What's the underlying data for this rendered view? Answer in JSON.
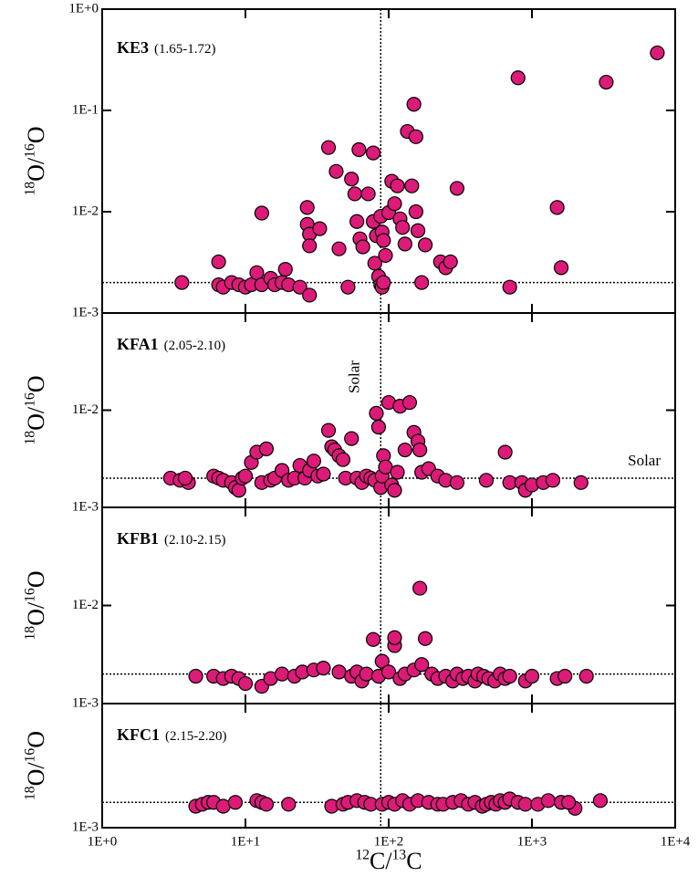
{
  "chart_data": [
    {
      "type": "scatter",
      "panel_name": "KE3",
      "panel_range": "(1.65-1.72)",
      "y_label": [
        "18",
        "O/",
        "16",
        "O"
      ],
      "color": "#dc1a78",
      "log_x": true,
      "log_y": true,
      "xlim": [
        1,
        10000
      ],
      "ylim": [
        0.001,
        1
      ],
      "solar_x": 88,
      "solar_y": 0.002,
      "yticks": [
        {
          "value": 1,
          "label": "1E+0"
        },
        {
          "value": 0.1,
          "label": "1E-1"
        },
        {
          "value": 0.01,
          "label": "1E-2"
        },
        {
          "value": 0.001,
          "label": "1E-3"
        }
      ],
      "x": [
        3.6,
        6.5,
        6.5,
        7,
        8,
        9,
        10,
        11,
        12,
        13,
        13,
        15,
        16,
        18,
        19,
        20,
        24,
        28,
        27,
        27,
        28,
        28,
        33,
        38,
        43,
        45,
        52,
        55,
        58,
        62,
        60,
        63,
        66,
        72,
        78,
        78,
        80,
        82,
        85,
        88,
        90,
        92,
        88,
        90,
        92,
        95,
        100,
        105,
        110,
        115,
        120,
        125,
        130,
        135,
        150,
        155,
        145,
        155,
        160,
        170,
        180,
        230,
        250,
        270,
        300,
        700,
        800,
        1500,
        1600,
        3300,
        7500
      ],
      "values": [
        0.002,
        0.0032,
        0.0019,
        0.0018,
        0.002,
        0.0019,
        0.0018,
        0.0019,
        0.0025,
        0.0097,
        0.0019,
        0.0022,
        0.0019,
        0.002,
        0.0027,
        0.0019,
        0.0018,
        0.0015,
        0.011,
        0.0075,
        0.006,
        0.0046,
        0.0068,
        0.043,
        0.025,
        0.0043,
        0.0018,
        0.021,
        0.015,
        0.041,
        0.008,
        0.0054,
        0.0045,
        0.015,
        0.038,
        0.008,
        0.0031,
        0.0058,
        0.0023,
        0.0019,
        0.0018,
        0.002,
        0.009,
        0.0063,
        0.0052,
        0.0037,
        0.0098,
        0.02,
        0.012,
        0.018,
        0.0085,
        0.007,
        0.0048,
        0.062,
        0.115,
        0.055,
        0.018,
        0.01,
        0.0065,
        0.002,
        0.0047,
        0.0032,
        0.0028,
        0.0032,
        0.017,
        0.0018,
        0.21,
        0.011,
        0.0028,
        0.19,
        0.37
      ]
    },
    {
      "type": "scatter",
      "panel_name": "KFA1",
      "panel_range": "(2.05-2.10)",
      "y_label": [
        "18",
        "O/",
        "16",
        "O"
      ],
      "color": "#dc1a78",
      "log_x": true,
      "log_y": true,
      "xlim": [
        1,
        10000
      ],
      "ylim": [
        0.001,
        0.1
      ],
      "solar_x": 88,
      "solar_y": 0.002,
      "annotations": [
        "Solar",
        "Solar"
      ],
      "yticks": [
        {
          "value": 0.01,
          "label": "1E-2"
        },
        {
          "value": 0.001,
          "label": "1E-3"
        }
      ],
      "x": [
        3,
        3.5,
        4,
        3.8,
        6,
        6.5,
        7,
        8,
        8.5,
        9,
        9.5,
        10,
        11,
        12,
        13,
        14,
        15,
        16,
        18,
        20,
        22,
        24,
        26,
        28,
        30,
        32,
        35,
        38,
        40,
        42,
        45,
        48,
        50,
        55,
        60,
        65,
        70,
        75,
        80,
        82,
        85,
        88,
        90,
        92,
        95,
        100,
        105,
        110,
        115,
        120,
        130,
        140,
        150,
        160,
        165,
        170,
        190,
        220,
        250,
        300,
        480,
        650,
        700,
        850,
        900,
        1000,
        1200,
        1400,
        2200
      ],
      "values": [
        0.002,
        0.0019,
        0.0018,
        0.002,
        0.0021,
        0.002,
        0.0019,
        0.0018,
        0.0016,
        0.0015,
        0.002,
        0.0021,
        0.0029,
        0.0037,
        0.0018,
        0.004,
        0.0019,
        0.002,
        0.0024,
        0.0019,
        0.002,
        0.0027,
        0.002,
        0.0024,
        0.003,
        0.0021,
        0.0022,
        0.0062,
        0.0042,
        0.0039,
        0.0034,
        0.0031,
        0.002,
        0.0051,
        0.002,
        0.0018,
        0.0021,
        0.002,
        0.0019,
        0.0093,
        0.0067,
        0.0016,
        0.0021,
        0.0034,
        0.0026,
        0.012,
        0.0017,
        0.0015,
        0.0023,
        0.011,
        0.0039,
        0.012,
        0.0059,
        0.0048,
        0.0039,
        0.0023,
        0.0025,
        0.0021,
        0.0019,
        0.0018,
        0.0019,
        0.0037,
        0.0018,
        0.0018,
        0.0015,
        0.0017,
        0.0018,
        0.0019,
        0.0018
      ]
    },
    {
      "type": "scatter",
      "panel_name": "KFB1",
      "panel_range": "(2.10-2.15)",
      "y_label": [
        "18",
        "O/",
        "16",
        "O"
      ],
      "color": "#dc1a78",
      "log_x": true,
      "log_y": true,
      "xlim": [
        1,
        10000
      ],
      "ylim": [
        0.001,
        0.1
      ],
      "solar_x": 88,
      "solar_y": 0.002,
      "yticks": [
        {
          "value": 0.01,
          "label": "1E-2"
        },
        {
          "value": 0.001,
          "label": "1E-3"
        }
      ],
      "x": [
        4.5,
        6,
        7,
        8,
        9,
        10,
        13,
        15,
        18,
        22,
        25,
        30,
        35,
        45,
        55,
        60,
        65,
        70,
        78,
        85,
        90,
        100,
        110,
        110,
        120,
        130,
        150,
        165,
        170,
        180,
        200,
        220,
        250,
        280,
        300,
        330,
        360,
        400,
        420,
        460,
        500,
        550,
        600,
        650,
        700,
        900,
        1000,
        1500,
        1700,
        2400
      ],
      "values": [
        0.0019,
        0.0019,
        0.0018,
        0.0019,
        0.0018,
        0.0016,
        0.0015,
        0.0018,
        0.002,
        0.0019,
        0.0021,
        0.0022,
        0.0023,
        0.0021,
        0.0019,
        0.0021,
        0.0017,
        0.002,
        0.0045,
        0.0019,
        0.0027,
        0.0021,
        0.0039,
        0.0047,
        0.0018,
        0.002,
        0.0022,
        0.015,
        0.0025,
        0.0046,
        0.002,
        0.0018,
        0.0019,
        0.0017,
        0.002,
        0.0018,
        0.0019,
        0.0017,
        0.002,
        0.0019,
        0.0018,
        0.0017,
        0.002,
        0.0018,
        0.0019,
        0.0017,
        0.0019,
        0.0018,
        0.0019,
        0.0019
      ]
    },
    {
      "type": "scatter",
      "panel_name": "KFC1",
      "panel_range": "(2.15-2.20)",
      "y_label": [
        "18",
        "O/",
        "16",
        "O"
      ],
      "x_label": [
        "12",
        "C/",
        "13",
        "C"
      ],
      "color": "#dc1a78",
      "log_x": true,
      "log_y": true,
      "xlim": [
        1,
        10000
      ],
      "ylim": [
        0.001,
        0.03
      ],
      "solar_x": 88,
      "solar_y": 0.002,
      "xticks": [
        {
          "value": 1,
          "label": "1E+0"
        },
        {
          "value": 10,
          "label": "1E+1"
        },
        {
          "value": 100,
          "label": "1E+2"
        },
        {
          "value": 1000,
          "label": "1E+3"
        },
        {
          "value": 10000,
          "label": "1E+4"
        }
      ],
      "yticks": [
        {
          "value": 0.001,
          "label": "1E-3"
        }
      ],
      "x": [
        4.5,
        5,
        5.5,
        6,
        7,
        8.5,
        12,
        13,
        14,
        20,
        40,
        48,
        52,
        60,
        68,
        75,
        90,
        100,
        110,
        125,
        140,
        160,
        190,
        220,
        240,
        280,
        320,
        360,
        400,
        450,
        480,
        520,
        560,
        600,
        650,
        700,
        800,
        900,
        1100,
        1300,
        1600,
        2000,
        1800,
        3000
      ],
      "values": [
        0.0018,
        0.0019,
        0.002,
        0.002,
        0.0018,
        0.002,
        0.0021,
        0.002,
        0.0019,
        0.0019,
        0.0018,
        0.0019,
        0.002,
        0.0021,
        0.002,
        0.0019,
        0.0019,
        0.002,
        0.0019,
        0.0021,
        0.0019,
        0.0021,
        0.002,
        0.0019,
        0.0019,
        0.002,
        0.0021,
        0.0019,
        0.002,
        0.0018,
        0.0019,
        0.002,
        0.0019,
        0.0021,
        0.002,
        0.0022,
        0.002,
        0.0019,
        0.0019,
        0.0021,
        0.002,
        0.0017,
        0.002,
        0.0021
      ]
    }
  ]
}
